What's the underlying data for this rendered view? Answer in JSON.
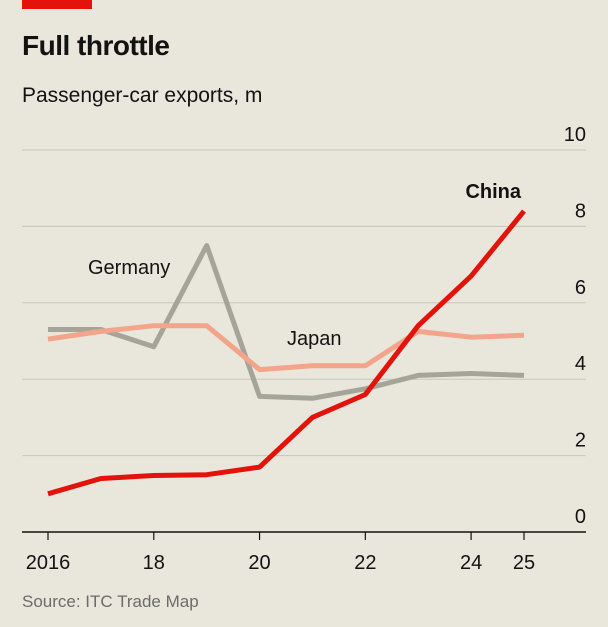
{
  "header": {
    "title": "Full throttle",
    "subtitle": "Passenger-car exports, m"
  },
  "footer": {
    "source": "Source: ITC Trade Map"
  },
  "colors": {
    "background": "#e9e6dc",
    "accent": "#e3120b",
    "china": "#e3120b",
    "germany": "#a5a499",
    "japan": "#f2a58a",
    "grid": "#c8c6bd",
    "axis": "#121212"
  },
  "chart_data": {
    "type": "line",
    "title": "Full throttle",
    "subtitle": "Passenger-car exports, m",
    "xlabel": "",
    "ylabel": "",
    "x": [
      2016,
      2017,
      2018,
      2019,
      2020,
      2021,
      2022,
      2023,
      2024,
      2025
    ],
    "xticks": [
      2016,
      2018,
      2020,
      2022,
      2024,
      2025
    ],
    "xtick_labels": [
      "2016",
      "18",
      "20",
      "22",
      "24",
      "25"
    ],
    "ylim": [
      0,
      10
    ],
    "yticks": [
      0,
      2,
      4,
      6,
      8,
      10
    ],
    "ytick_labels": [
      "0",
      "2",
      "4",
      "6",
      "8",
      "10"
    ],
    "y_axis_side": "right",
    "grid": true,
    "legend": "none (direct labels)",
    "series": [
      {
        "name": "Germany",
        "color": "#a5a499",
        "label_bold": false,
        "values": [
          5.3,
          5.3,
          4.85,
          7.5,
          3.55,
          3.5,
          3.75,
          4.1,
          4.15,
          4.1
        ]
      },
      {
        "name": "Japan",
        "color": "#f2a58a",
        "label_bold": false,
        "values": [
          5.05,
          5.25,
          5.4,
          5.4,
          4.25,
          4.35,
          4.35,
          5.25,
          5.1,
          5.15
        ]
      },
      {
        "name": "China",
        "color": "#e3120b",
        "label_bold": true,
        "values": [
          1.0,
          1.4,
          1.48,
          1.5,
          1.7,
          3.0,
          3.6,
          5.4,
          6.7,
          8.4
        ]
      }
    ]
  }
}
